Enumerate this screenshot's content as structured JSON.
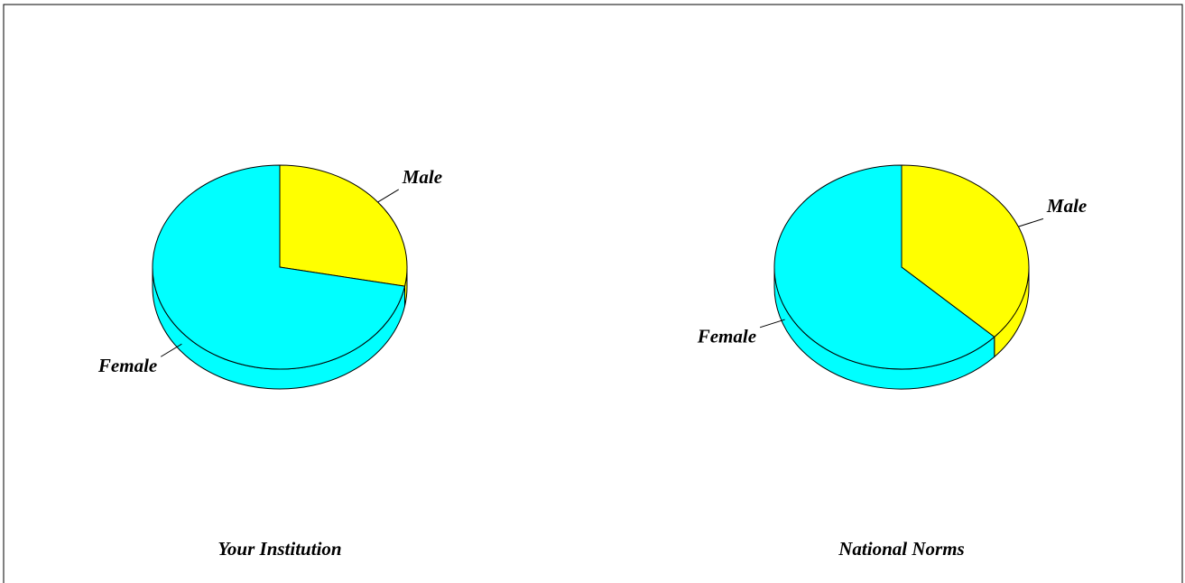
{
  "chart_data": [
    {
      "type": "pie",
      "title": "Your Institution",
      "categories": [
        "Male",
        "Female"
      ],
      "values": [
        28,
        72
      ],
      "colors": [
        "#ffff00",
        "#00ffff"
      ]
    },
    {
      "type": "pie",
      "title": "National Norms",
      "categories": [
        "Male",
        "Female"
      ],
      "values": [
        37,
        63
      ],
      "colors": [
        "#ffff00",
        "#00ffff"
      ]
    }
  ]
}
